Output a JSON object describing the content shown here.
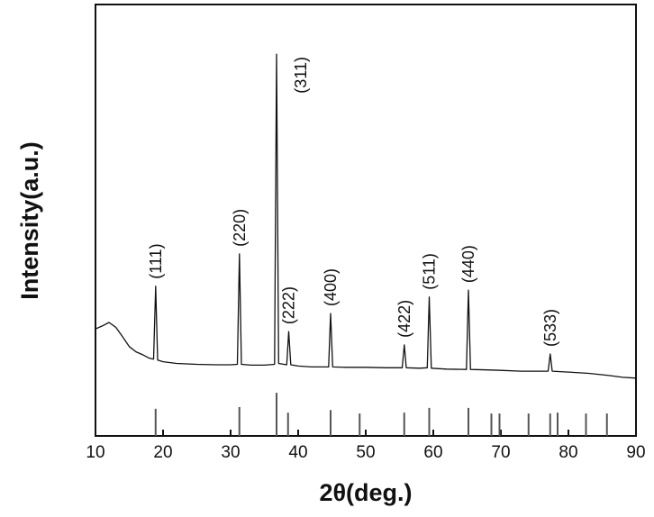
{
  "chart_data": {
    "type": "line",
    "xlabel": "2θ(deg.)",
    "ylabel": "Intensity(a.u.)",
    "xlim": [
      10,
      90
    ],
    "xticks": [
      10,
      20,
      30,
      40,
      50,
      60,
      70,
      80,
      90
    ],
    "ylim": [
      0,
      100
    ],
    "color": "#111111",
    "x": [
      10,
      11,
      12,
      13,
      14,
      15,
      16,
      17,
      18,
      18.6,
      18.9,
      19.2,
      20,
      22,
      25,
      28,
      30,
      31.0,
      31.3,
      31.6,
      33,
      35,
      36.5,
      36.8,
      37.1,
      38.3,
      38.6,
      38.9,
      40,
      42,
      44.5,
      44.8,
      45.1,
      47,
      50,
      53,
      55.4,
      55.7,
      56.0,
      58,
      59.1,
      59.4,
      59.7,
      62,
      64.9,
      65.2,
      65.5,
      68,
      70,
      73,
      77.0,
      77.3,
      77.6,
      80,
      83,
      86,
      88,
      90
    ],
    "values": [
      24.8,
      25.5,
      26.3,
      25.2,
      23,
      20.7,
      19.5,
      18.8,
      18,
      17.8,
      34.7,
      17.6,
      17.2,
      16.8,
      16.6,
      16.5,
      16.5,
      16.6,
      42.2,
      16.6,
      16.4,
      16.4,
      16.6,
      88.5,
      16.8,
      16.5,
      24.2,
      16.5,
      16.2,
      16,
      16,
      28.4,
      16,
      15.9,
      15.9,
      15.8,
      15.8,
      21.1,
      15.8,
      15.7,
      15.8,
      32.2,
      15.7,
      15.5,
      15.4,
      33.8,
      15.4,
      15.3,
      15.2,
      15,
      15,
      19,
      15,
      14.8,
      14.5,
      14,
      13.6,
      13.4
    ],
    "reference_lines": {
      "x": [
        18.9,
        31.3,
        36.8,
        38.5,
        44.8,
        49.1,
        55.7,
        59.4,
        65.2,
        68.6,
        69.8,
        74.1,
        77.3,
        78.4,
        82.6,
        85.7
      ],
      "values": [
        6.3,
        6.7,
        10,
        5.4,
        6,
        5.2,
        5.4,
        6.5,
        6.5,
        5.2,
        5.2,
        5.2,
        5.2,
        5.4,
        5.2,
        5.2
      ]
    },
    "peak_labels": [
      {
        "label": "(111)",
        "x": 18.9
      },
      {
        "label": "(220)",
        "x": 31.3
      },
      {
        "label": "(311)",
        "x": 36.8
      },
      {
        "label": "(222)",
        "x": 38.6
      },
      {
        "label": "(400)",
        "x": 44.8
      },
      {
        "label": "(422)",
        "x": 55.7
      },
      {
        "label": "(511)",
        "x": 59.4
      },
      {
        "label": "(440)",
        "x": 65.2
      },
      {
        "label": "(533)",
        "x": 77.3
      }
    ]
  }
}
